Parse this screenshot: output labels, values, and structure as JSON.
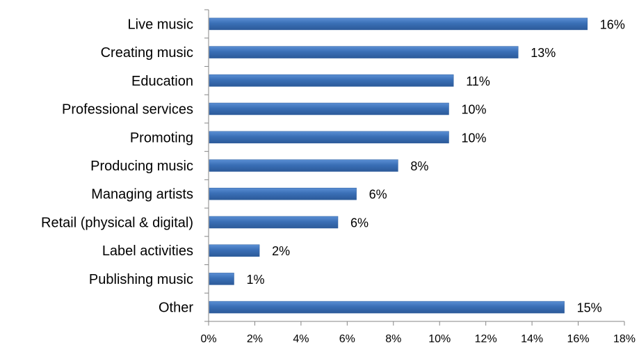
{
  "chart_data": {
    "type": "bar",
    "orientation": "horizontal",
    "categories": [
      "Live music",
      "Creating music",
      "Education",
      "Professional services",
      "Promoting",
      "Producing music",
      "Managing artists",
      "Retail (physical & digital)",
      "Label activities",
      "Publishing music",
      "Other"
    ],
    "values": [
      16.4,
      13.4,
      10.6,
      10.4,
      10.4,
      8.2,
      6.4,
      5.6,
      2.2,
      1.1,
      15.4
    ],
    "data_labels": [
      "16%",
      "13%",
      "11%",
      "10%",
      "10%",
      "8%",
      "6%",
      "6%",
      "2%",
      "1%",
      "15%"
    ],
    "xlim": [
      0,
      18
    ],
    "x_ticks": [
      0,
      2,
      4,
      6,
      8,
      10,
      12,
      14,
      16,
      18
    ],
    "x_tick_labels": [
      "0%",
      "2%",
      "4%",
      "6%",
      "8%",
      "10%",
      "12%",
      "14%",
      "16%",
      "18%"
    ],
    "title": "",
    "xlabel": "",
    "ylabel": "",
    "grid": false,
    "legend": "none",
    "bar_color": "#3a6fb6"
  }
}
